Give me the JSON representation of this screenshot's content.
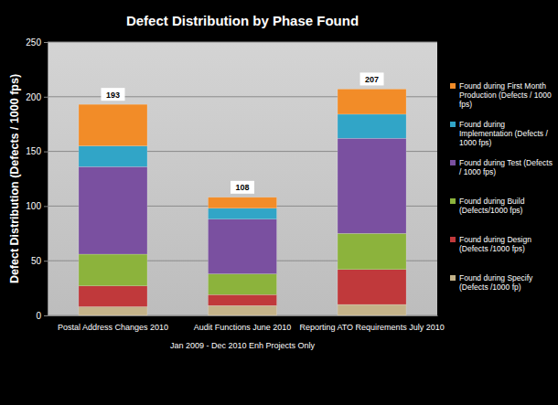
{
  "chart_data": {
    "type": "bar",
    "stacked": true,
    "title": "Defect Distribution by Phase Found",
    "y_label": "Defect Distribution  (Defects / 1000 fps)",
    "x_label": "Jan 2009 - Dec 2010 Enh Projects Only",
    "categories": [
      "Postal Address Changes 2010",
      "Audit Functions June 2010",
      "Reporting ATO Requirements July 2010"
    ],
    "series": [
      {
        "name": "Found during Specify (Defects /1000 fp)",
        "color": "#c4b38a",
        "values": [
          8,
          9,
          10
        ]
      },
      {
        "name": "Found during Design (Defects /1000 fps)",
        "color": "#c0393b",
        "values": [
          19,
          10,
          32
        ]
      },
      {
        "name": "Found during Build (Defects/1000 fps)",
        "color": "#8cb33c",
        "values": [
          29,
          19,
          33
        ]
      },
      {
        "name": "Found during Test (Defects / 1000 fps)",
        "color": "#7a50a0",
        "values": [
          80,
          50,
          87
        ]
      },
      {
        "name": "Found during Implementation (Defects / 1000 fps)",
        "color": "#31a5c7",
        "values": [
          19,
          10,
          22
        ]
      },
      {
        "name": "Found during First Month Production (Defects / 1000 fps)",
        "color": "#f28c28",
        "values": [
          38,
          10,
          23
        ]
      }
    ],
    "totals": [
      193,
      108,
      207
    ],
    "ylim": [
      0,
      250
    ],
    "yticks": [
      0,
      50,
      100,
      150,
      200,
      250
    ],
    "grid": true,
    "legend": "right"
  }
}
